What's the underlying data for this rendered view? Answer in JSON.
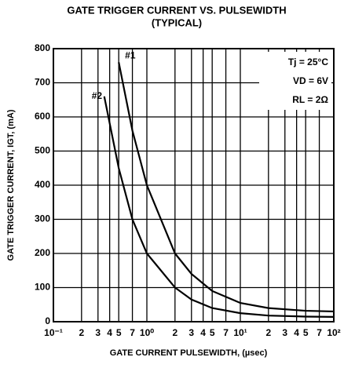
{
  "chart_data": {
    "type": "line",
    "title": "GATE TRIGGER CURRENT VS. PULSEWIDTH",
    "subtitle": "(TYPICAL)",
    "x_label": "GATE CURRENT PULSEWIDTH, (µsec)",
    "y_label": "GATE TRIGGER CURRENT, IGT, (mA)",
    "x_scale": "log",
    "grid": true,
    "color": "#000000",
    "xlim": [
      0.1,
      100
    ],
    "ylim": [
      0,
      800
    ],
    "xticks": [
      {
        "value": 0.1,
        "label": "10⁻¹"
      },
      {
        "value": 0.2,
        "label": "2"
      },
      {
        "value": 0.3,
        "label": "3"
      },
      {
        "value": 0.4,
        "label": "4"
      },
      {
        "value": 0.5,
        "label": "5"
      },
      {
        "value": 0.7,
        "label": "7"
      },
      {
        "value": 1,
        "label": "10⁰"
      },
      2,
      3,
      4,
      5,
      7,
      {
        "value": 10,
        "label": "10¹"
      },
      {
        "value": 20,
        "label": "2"
      },
      {
        "value": 30,
        "label": "3"
      },
      {
        "value": 40,
        "label": "4"
      },
      {
        "value": 50,
        "label": "5"
      },
      {
        "value": 70,
        "label": "7"
      },
      {
        "value": 100,
        "label": "10²"
      }
    ],
    "yticks": [
      0,
      100,
      200,
      300,
      400,
      500,
      600,
      700,
      800
    ],
    "annotations": [
      "Tj = 25°C",
      "VD = 6V",
      "RL = 2Ω"
    ],
    "series": [
      {
        "name": "#1",
        "color": "#000000",
        "x": [
          0.5,
          0.7,
          1,
          2,
          3,
          5,
          10,
          20,
          50,
          100
        ],
        "values": [
          760,
          560,
          400,
          200,
          140,
          90,
          55,
          40,
          32,
          30
        ]
      },
      {
        "name": "#2",
        "color": "#000000",
        "x": [
          0.35,
          0.5,
          0.7,
          1,
          2,
          3,
          5,
          10,
          20,
          50,
          100
        ],
        "values": [
          660,
          450,
          300,
          200,
          100,
          65,
          40,
          25,
          18,
          15,
          14
        ]
      }
    ]
  }
}
